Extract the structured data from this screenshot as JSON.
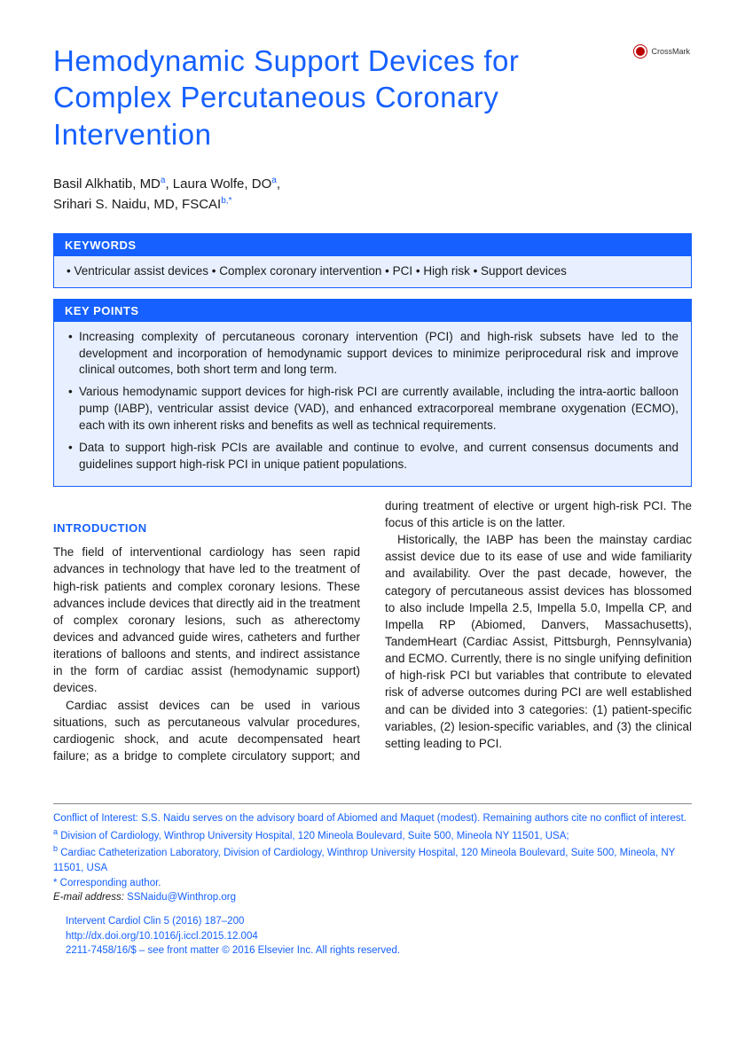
{
  "title": "Hemodynamic Support Devices for Complex Percutaneous Coronary Intervention",
  "crossmark_label": "CrossMark",
  "authors": {
    "a1_name": "Basil Alkhatib, ",
    "a1_deg": "MD",
    "a1_sup": "a",
    "a2_name": "Laura Wolfe, ",
    "a2_deg": "DO",
    "a2_sup": "a",
    "a3_name": "Srihari S. Naidu, ",
    "a3_deg": "MD, FSCAI",
    "a3_sup": "b,",
    "a3_star": "*"
  },
  "keywords": {
    "header": "KEYWORDS",
    "content": "• Ventricular assist devices • Complex coronary intervention • PCI • High risk • Support devices"
  },
  "keypoints": {
    "header": "KEY POINTS",
    "items": [
      "Increasing complexity of percutaneous coronary intervention (PCI) and high-risk subsets have led to the development and incorporation of hemodynamic support devices to minimize periprocedural risk and improve clinical outcomes, both short term and long term.",
      "Various hemodynamic support devices for high-risk PCI are currently available, including the intra-aortic balloon pump (IABP), ventricular assist device (VAD), and enhanced extracorporeal membrane oxygenation (ECMO), each with its own inherent risks and benefits as well as technical requirements.",
      "Data to support high-risk PCIs are available and continue to evolve, and current consensus documents and guidelines support high-risk PCI in unique patient populations."
    ]
  },
  "intro_heading": "INTRODUCTION",
  "paragraphs": {
    "p1": "The field of interventional cardiology has seen rapid advances in technology that have led to the treatment of high-risk patients and complex coronary lesions. These advances include devices that directly aid in the treatment of complex coronary lesions, such as atherectomy devices and advanced guide wires, catheters and further iterations of balloons and stents, and indirect assistance in the form of cardiac assist (hemodynamic support) devices.",
    "p2": "Cardiac assist devices can be used in various situations, such as percutaneous valvular procedures, cardiogenic shock, and acute decompensated heart failure; as a bridge to complete circulatory support; and during treatment of elective or urgent high-risk PCI. The focus of this article is on the latter.",
    "p3": "Historically, the IABP has been the mainstay cardiac assist device due to its ease of use and wide familiarity and availability. Over the past decade, however, the category of percutaneous assist devices has blossomed to also include Impella 2.5, Impella 5.0, Impella CP, and Impella RP (Abiomed, Danvers, Massachusetts), TandemHeart (Cardiac Assist, Pittsburgh, Pennsylvania) and ECMO. Currently, there is no single unifying definition of high-risk PCI but variables that contribute to elevated risk of adverse outcomes during PCI are well established and can be divided into 3 categories: (1) patient-specific variables, (2) lesion-specific variables, and (3) the clinical setting leading to PCI."
  },
  "footer": {
    "conflict": "Conflict of Interest: S.S. Naidu serves on the advisory board of Abiomed and Maquet (modest). Remaining authors cite no conflict of interest.",
    "affil_a_label": "a",
    "affil_a": " Division of Cardiology, Winthrop University Hospital, 120 Mineola Boulevard, Suite 500, Mineola NY 11501, USA; ",
    "affil_b_label": "b",
    "affil_b": " Cardiac Catheterization Laboratory, Division of Cardiology, Winthrop University Hospital, 120 Mineola Boulevard, Suite 500, Mineola, NY 11501, USA",
    "corr_label": "*",
    "corr": " Corresponding author.",
    "email_label": "E-mail address: ",
    "email": "SSNaidu@Winthrop.org"
  },
  "journal": {
    "citation": "Intervent Cardiol Clin 5 (2016) 187–200",
    "doi": "http://dx.doi.org/10.1016/j.iccl.2015.12.004",
    "copyright": "2211-7458/16/$ – see front matter © 2016 Elsevier Inc. All rights reserved."
  }
}
